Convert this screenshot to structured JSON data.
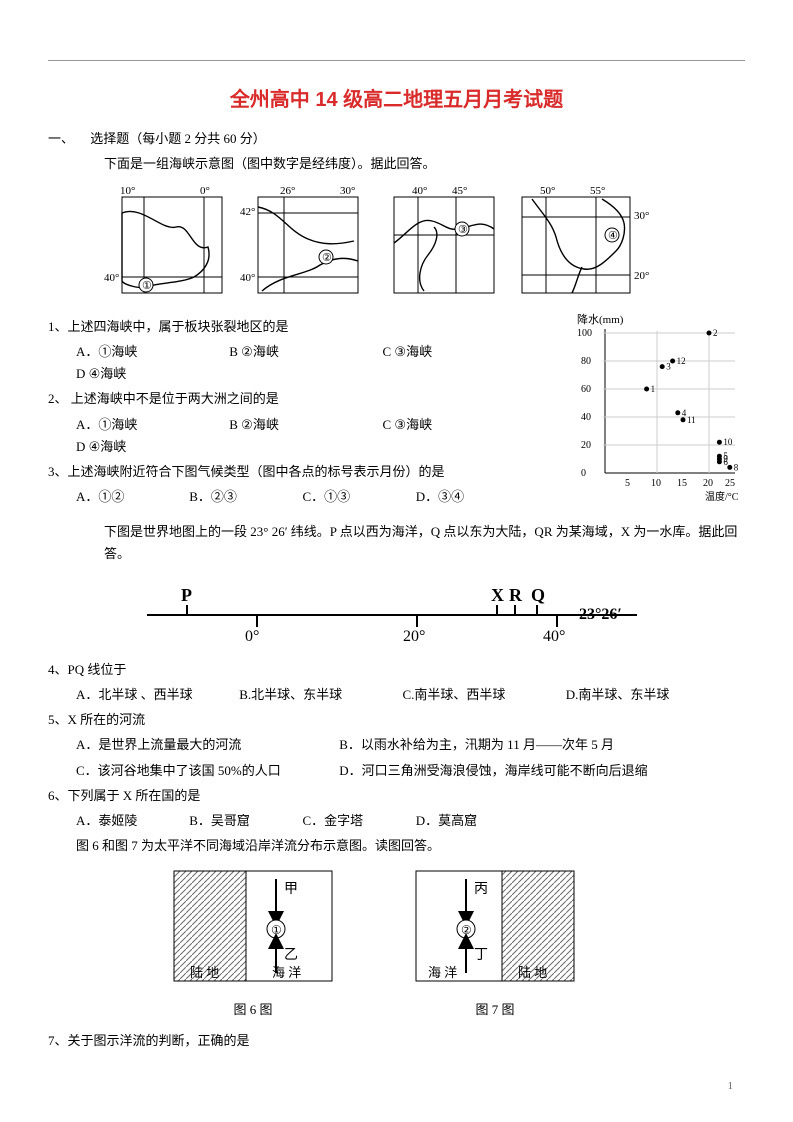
{
  "title": "全州高中 14 级高二地理五月月考试题",
  "section1": {
    "num": "一、",
    "head": "选择题（每小题 2 分共 60 分）",
    "intro": "下面是一组海峡示意图（图中数字是经纬度）。据此回答。"
  },
  "maps": {
    "m1": {
      "top_left": "10°",
      "top_right": "0°",
      "bot_left": "40°",
      "circle": "①"
    },
    "m2": {
      "top_left": "26°",
      "top_right": "30°",
      "left_top": "42°",
      "left_bot": "40°",
      "circle": "②"
    },
    "m3": {
      "top_left": "40°",
      "top_right": "45°",
      "circle": "③"
    },
    "m4": {
      "top_left": "50°",
      "top_right": "55°",
      "right_top": "30°",
      "right_bot": "20°",
      "circle": "④"
    }
  },
  "q1": {
    "stem": "1、上述四海峡中，属于板块张裂地区的是",
    "A": "A．①海峡",
    "B": "B  ②海峡",
    "C": "C  ③海峡",
    "D": "D  ④海峡"
  },
  "q2": {
    "stem": "2、 上述海峡中不是位于两大洲之间的是",
    "A": "A．①海峡",
    "B": "B  ②海峡",
    "C": "C  ③海峡",
    "D": "D  ④海峡"
  },
  "q3": {
    "stem": "3、上述海峡附近符合下图气候类型（图中各点的标号表示月份）的是",
    "A": "A．①②",
    "B": "B．②③",
    "C": "C．①③",
    "D": "D．③④"
  },
  "scatter": {
    "ylabel": "降水(mm)",
    "xlabel": "温度/°C",
    "yticks": [
      0,
      20,
      40,
      60,
      80,
      100
    ],
    "xticks": [
      5,
      10,
      15,
      20,
      25
    ],
    "points": [
      {
        "x": 20,
        "y": 100,
        "l": "2"
      },
      {
        "x": 13,
        "y": 80,
        "l": "12"
      },
      {
        "x": 11,
        "y": 76,
        "l": "3"
      },
      {
        "x": 8,
        "y": 60,
        "l": "1"
      },
      {
        "x": 14,
        "y": 43,
        "l": "4"
      },
      {
        "x": 15,
        "y": 38,
        "l": "11"
      },
      {
        "x": 22,
        "y": 22,
        "l": "10"
      },
      {
        "x": 22,
        "y": 12,
        "l": "5"
      },
      {
        "x": 22,
        "y": 10,
        "l": "9"
      },
      {
        "x": 22,
        "y": 8,
        "l": "6"
      },
      {
        "x": 24,
        "y": 4,
        "l": "8"
      }
    ]
  },
  "pq_intro": "下图是世界地图上的一段 23° 26′ 纬线。P 点以西为海洋，Q 点以东为大陆，QR 为某海域，X 为一水库。据此回答。",
  "pq": {
    "P": "P",
    "X": "X",
    "R": "R",
    "Q": "Q",
    "t0": "0°",
    "t20": "20°",
    "t40": "40°",
    "lat": "23°26′"
  },
  "q4": {
    "stem": "4、PQ 线位于",
    "A": "A．北半球 、西半球",
    "B": "B.北半球、东半球",
    "C": "C.南半球、西半球",
    "D": "D.南半球、东半球"
  },
  "q5": {
    "stem": "5、X 所在的河流",
    "A": "A．是世界上流量最大的河流",
    "B": "B．以雨水补给为主，汛期为 11 月——次年 5 月",
    "C": "C．该河谷地集中了该国 50%的人口",
    "D": "D．河口三角洲受海浪侵蚀，海岸线可能不断向后退缩"
  },
  "q6": {
    "stem": "6、下列属于 X 所在国的是",
    "A": "A．泰姬陵",
    "B": "B．吴哥窟",
    "C": "C．金字塔",
    "D": "D．莫高窟"
  },
  "fig_intro": "图 6 和图 7 为太平洋不同海域沿岸洋流分布示意图。读图回答。",
  "fig6": {
    "jia": "甲",
    "c": "①",
    "yi": "乙",
    "land": "陆 地",
    "sea": "海 洋",
    "cap": "图 6 图"
  },
  "fig7": {
    "bing": "丙",
    "c": "②",
    "ding": "丁",
    "sea": "海 洋",
    "land": "陆 地",
    "cap": "图 7 图"
  },
  "q7": {
    "stem": "7、关于图示洋流的判断，正确的是"
  },
  "page_num": "1",
  "colors": {
    "title": "#d92b2b",
    "line": "#000000",
    "hatch": "#6b6b6b",
    "bg": "#ffffff"
  }
}
